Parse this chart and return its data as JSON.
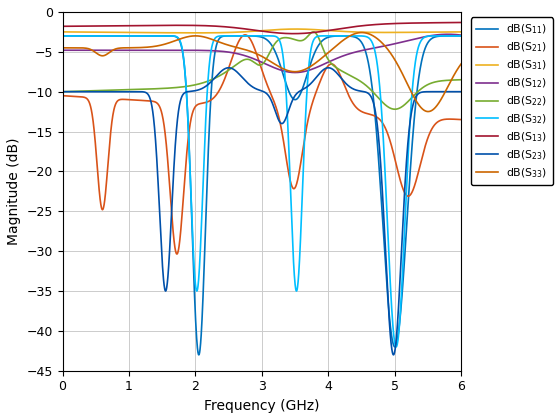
{
  "xlabel": "Frequency (GHz)",
  "ylabel": "Magnitude (dB)",
  "xlim": [
    0,
    6
  ],
  "ylim": [
    -45,
    0
  ],
  "yticks": [
    0,
    -5,
    -10,
    -15,
    -20,
    -25,
    -30,
    -35,
    -40,
    -45
  ],
  "xticks": [
    0,
    1,
    2,
    3,
    4,
    5,
    6
  ],
  "legend_labels_fmt": [
    "dB(S$_{11}$)",
    "dB(S$_{21}$)",
    "dB(S$_{31}$)",
    "dB(S$_{12}$)",
    "dB(S$_{22}$)",
    "dB(S$_{32}$)",
    "dB(S$_{13}$)",
    "dB(S$_{23}$)",
    "dB(S$_{33}$)"
  ],
  "colors": [
    "#0072BD",
    "#D95319",
    "#EDB120",
    "#7E2F8E",
    "#77AC30",
    "#00BFFF",
    "#A2142F",
    "#0050AA",
    "#CC6600"
  ],
  "linewidths": [
    1.2,
    1.2,
    1.2,
    1.2,
    1.2,
    1.2,
    1.2,
    1.2,
    1.2
  ]
}
